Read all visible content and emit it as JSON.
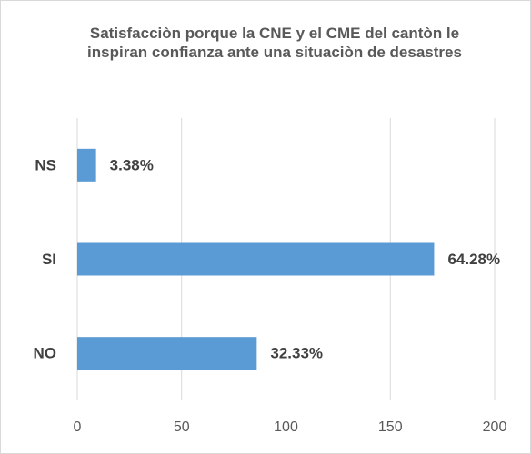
{
  "chart_data": {
    "type": "barh",
    "title": "Satisfacciòn porque la CNE y el CME del cantòn le inspiran confianza ante una situaciòn de desastres",
    "categories": [
      "NS",
      "SI",
      "NO"
    ],
    "values": [
      9,
      171,
      86
    ],
    "value_labels": [
      "3.38%",
      "64.28%",
      "32.33%"
    ],
    "color": "#5b9bd5",
    "xlim": [
      0,
      200
    ],
    "xticks": [
      0,
      50,
      100,
      150,
      200
    ],
    "grid": true
  }
}
